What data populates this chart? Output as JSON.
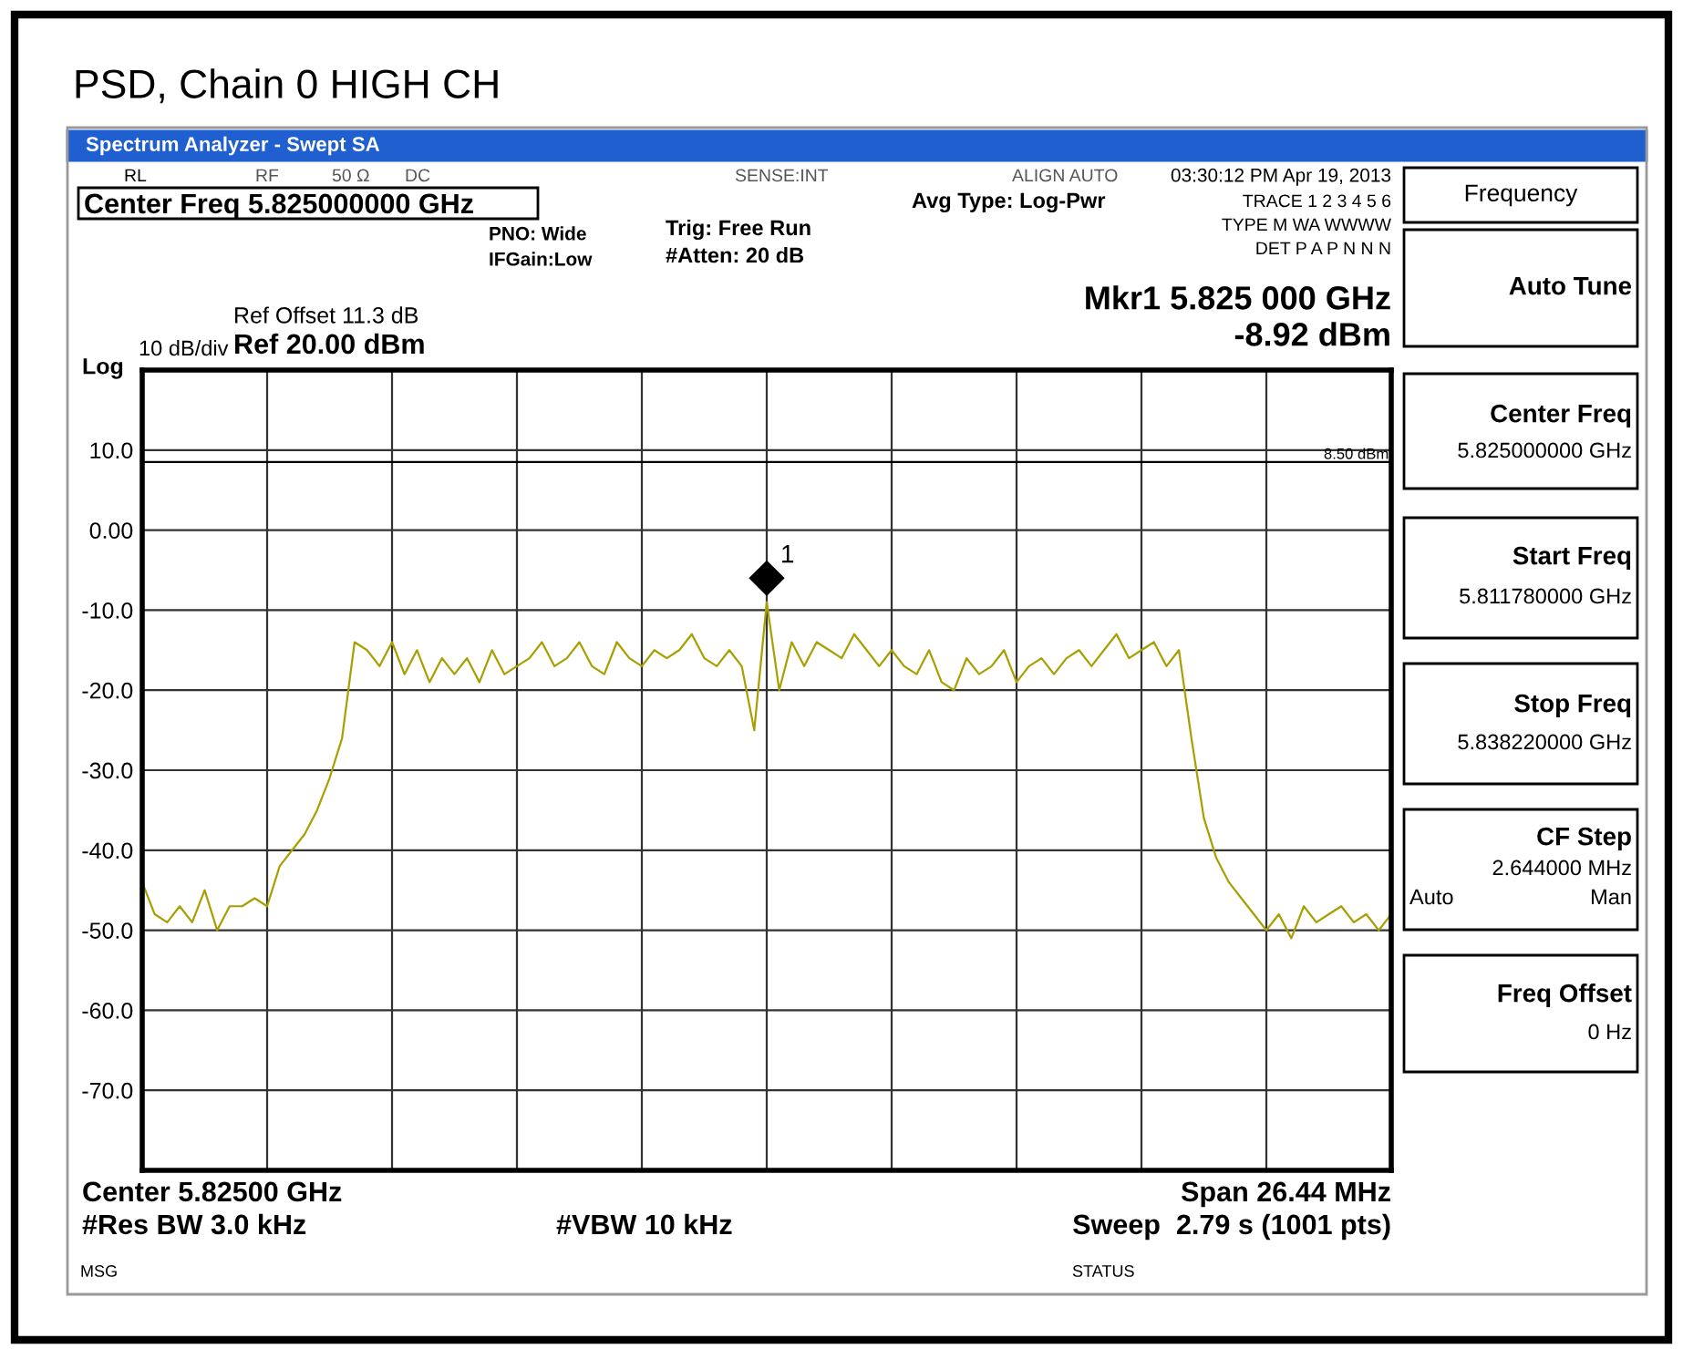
{
  "chart_data": {
    "type": "line",
    "title": "PSD, Chain 0 HIGH CH",
    "categories": [
      null,
      null,
      null,
      null,
      null,
      null,
      null,
      null,
      null,
      null,
      null,
      null,
      null,
      null,
      null,
      null,
      null,
      null,
      null,
      null,
      null,
      null,
      null,
      null,
      null,
      null,
      null,
      null,
      null,
      null,
      null,
      null,
      null,
      null,
      null,
      null,
      null,
      null,
      null,
      null,
      null,
      null,
      null,
      null,
      null,
      null,
      null,
      null,
      null,
      null,
      null,
      null,
      null,
      null,
      null,
      null,
      null,
      null,
      null,
      null,
      null,
      null,
      null,
      null,
      null,
      null,
      null,
      null,
      null,
      null,
      null,
      null,
      null,
      null,
      null,
      null,
      null,
      null,
      null,
      null,
      null,
      null,
      null,
      null,
      null,
      null,
      null,
      null,
      null,
      null,
      null,
      null,
      null,
      null,
      null,
      null,
      null,
      null,
      null,
      null,
      null
    ],
    "ylim": [
      -80,
      20
    ],
    "yticks": [
      {
        "value": 20,
        "label": null
      },
      {
        "value": 10,
        "label": "10.0"
      },
      {
        "value": 0,
        "label": "0.00"
      },
      {
        "value": -10,
        "label": "-10.0"
      },
      {
        "value": -20,
        "label": "-20.0"
      },
      {
        "value": -30,
        "label": "-30.0"
      },
      {
        "value": -40,
        "label": "-40.0"
      },
      {
        "value": -50,
        "label": "-50.0"
      },
      {
        "value": -60,
        "label": "-60.0"
      },
      {
        "value": -70,
        "label": "-70.0"
      },
      {
        "value": -80,
        "label": null
      }
    ],
    "grid": true,
    "marker": "none",
    "line_style": "solid",
    "series": [
      {
        "color": "#a89f00",
        "values": [
          -44,
          -48,
          -49,
          -47,
          -49,
          -45,
          -50,
          -47,
          -47,
          -46,
          -47,
          -42,
          -40,
          -38,
          -35,
          -31,
          -26,
          -14,
          -15,
          -17,
          -14,
          -18,
          -15,
          -19,
          -16,
          -18,
          -16,
          -19,
          -15,
          -18,
          -17,
          -16,
          -14,
          -17,
          -16,
          -14,
          -17,
          -18,
          -14,
          -16,
          -17,
          -15,
          -16,
          -15,
          -13,
          -16,
          -17,
          -15,
          -17,
          -25,
          -9,
          -20,
          -14,
          -17,
          -14,
          -15,
          -16,
          -13,
          -15,
          -17,
          -15,
          -17,
          -18,
          -15,
          -19,
          -20,
          -16,
          -18,
          -17,
          -15,
          -19,
          -17,
          -16,
          -18,
          -16,
          -15,
          -17,
          -15,
          -13,
          -16,
          -15,
          -14,
          -17,
          -15,
          -26,
          -36,
          -41,
          -44,
          -46,
          -48,
          -50,
          -48,
          -51,
          -47,
          -49,
          -48,
          -47,
          -49,
          -48,
          -50,
          -48
        ]
      }
    ],
    "ref_lines": [
      {
        "axis": "y",
        "value": 8.5,
        "label": "8.50 dBm",
        "color": "#000000"
      }
    ],
    "annotations": [
      "Spectrum Analyzer - Swept SA",
      "RL",
      "RF",
      "50 Ω",
      "DC",
      "SENSE:INT",
      "ALIGN AUTO",
      "03:30:12 PM Apr 19, 2013",
      "Center Freq 5.825000000 GHz",
      "PNO: Wide",
      "IFGain:Low",
      "Trig: Free Run",
      "#Atten: 20 dB",
      "Avg Type: Log-Pwr",
      "TRACE 1 2 3 4 5 6",
      "TYPE M WA WWWW",
      "DET P A P N N N",
      "Mkr1 5.825 000 GHz",
      "-8.92 dBm",
      "Ref Offset 11.3 dB",
      "Ref 20.00 dBm",
      "10 dB/div",
      "Log",
      "Center 5.82500 GHz",
      "Span 26.44 MHz",
      "#Res BW 3.0 kHz",
      "#VBW 10 kHz",
      "Sweep  2.79 s (1001 pts)",
      "MSG",
      "STATUS",
      "Frequency",
      "Auto Tune",
      "Center Freq",
      "5.825000000 GHz",
      "Start Freq",
      "5.811780000 GHz",
      "Stop Freq",
      "5.838220000 GHz",
      "CF Step",
      "2.644000 MHz",
      "Auto",
      "Man",
      "Freq Offset",
      "0 Hz",
      "1"
    ]
  }
}
